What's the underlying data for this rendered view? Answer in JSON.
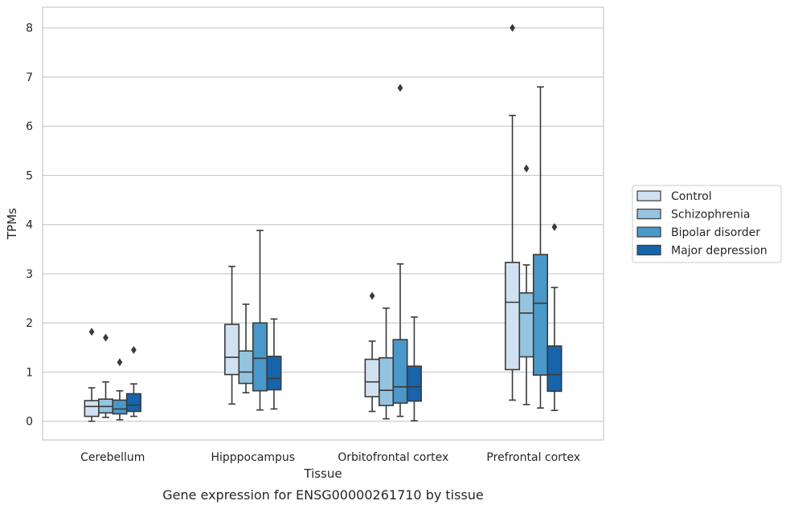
{
  "caption": "Gene expression for ENSG00000261710 by tissue",
  "chart_data": {
    "type": "box",
    "xlabel": "Tissue",
    "ylabel": "TPMs",
    "ylim": [
      -0.38,
      8.42
    ],
    "yticks": [
      0,
      1,
      2,
      3,
      4,
      5,
      6,
      7,
      8
    ],
    "grid": "horizontal",
    "legend_position": "right",
    "categories": [
      "Cerebellum",
      "Hipppocampus",
      "Orbitofrontal cortex",
      "Prefrontal cortex"
    ],
    "series": [
      {
        "name": "Control",
        "color": "#d0e1f2",
        "boxes": [
          {
            "whislo": 0.0,
            "q1": 0.1,
            "med": 0.3,
            "q3": 0.42,
            "whishi": 0.68,
            "fliers": [
              1.82
            ]
          },
          {
            "whislo": 0.35,
            "q1": 0.95,
            "med": 1.3,
            "q3": 1.97,
            "whishi": 3.15,
            "fliers": []
          },
          {
            "whislo": 0.2,
            "q1": 0.5,
            "med": 0.8,
            "q3": 1.26,
            "whishi": 1.63,
            "fliers": [
              2.55
            ]
          },
          {
            "whislo": 0.43,
            "q1": 1.05,
            "med": 2.42,
            "q3": 3.23,
            "whishi": 6.22,
            "fliers": [
              8.0
            ]
          }
        ]
      },
      {
        "name": "Schizophrenia",
        "color": "#94c4df",
        "boxes": [
          {
            "whislo": 0.08,
            "q1": 0.17,
            "med": 0.3,
            "q3": 0.45,
            "whishi": 0.8,
            "fliers": [
              1.7
            ]
          },
          {
            "whislo": 0.58,
            "q1": 0.77,
            "med": 1.0,
            "q3": 1.43,
            "whishi": 2.38,
            "fliers": []
          },
          {
            "whislo": 0.05,
            "q1": 0.32,
            "med": 0.63,
            "q3": 1.29,
            "whishi": 2.3,
            "fliers": []
          },
          {
            "whislo": 0.34,
            "q1": 1.31,
            "med": 2.2,
            "q3": 2.61,
            "whishi": 3.18,
            "fliers": [
              5.14
            ]
          }
        ]
      },
      {
        "name": "Bipolar disorder",
        "color": "#4a98c9",
        "boxes": [
          {
            "whislo": 0.03,
            "q1": 0.15,
            "med": 0.25,
            "q3": 0.43,
            "whishi": 0.62,
            "fliers": [
              1.2
            ]
          },
          {
            "whislo": 0.23,
            "q1": 0.62,
            "med": 1.28,
            "q3": 2.0,
            "whishi": 3.88,
            "fliers": []
          },
          {
            "whislo": 0.1,
            "q1": 0.37,
            "med": 0.7,
            "q3": 1.66,
            "whishi": 3.2,
            "fliers": [
              6.78
            ]
          },
          {
            "whislo": 0.27,
            "q1": 0.94,
            "med": 2.4,
            "q3": 3.39,
            "whishi": 6.8,
            "fliers": []
          }
        ]
      },
      {
        "name": "Major depression",
        "color": "#1764ab",
        "boxes": [
          {
            "whislo": 0.1,
            "q1": 0.2,
            "med": 0.33,
            "q3": 0.56,
            "whishi": 0.76,
            "fliers": [
              1.45
            ]
          },
          {
            "whislo": 0.25,
            "q1": 0.64,
            "med": 0.87,
            "q3": 1.32,
            "whishi": 2.08,
            "fliers": []
          },
          {
            "whislo": 0.01,
            "q1": 0.41,
            "med": 0.7,
            "q3": 1.12,
            "whishi": 2.12,
            "fliers": []
          },
          {
            "whislo": 0.22,
            "q1": 0.61,
            "med": 0.95,
            "q3": 1.53,
            "whishi": 2.72,
            "fliers": [
              3.95
            ]
          }
        ]
      }
    ]
  }
}
